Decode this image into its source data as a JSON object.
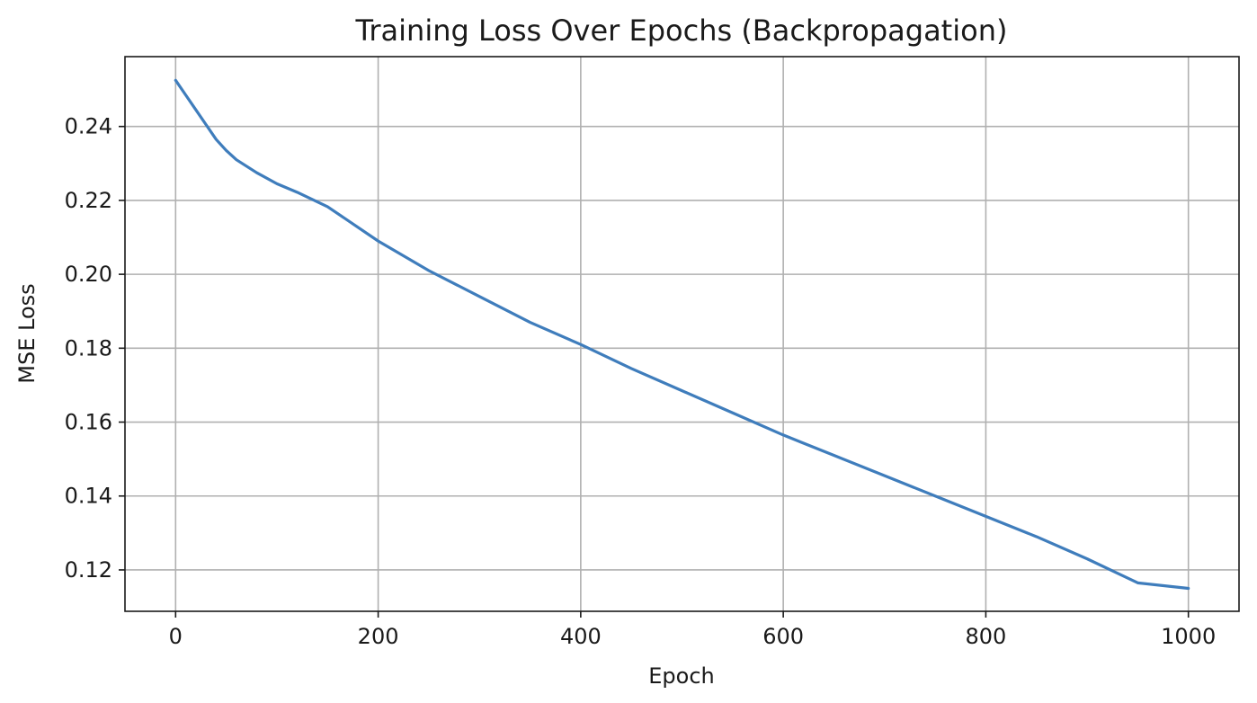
{
  "chart_data": {
    "type": "line",
    "title": "Training Loss Over Epochs (Backpropagation)",
    "xlabel": "Epoch",
    "ylabel": "MSE Loss",
    "xlim": [
      -50,
      1050
    ],
    "ylim": [
      0.1088,
      0.2589
    ],
    "xticks": [
      0,
      200,
      400,
      600,
      800,
      1000
    ],
    "xtick_labels": [
      "0",
      "200",
      "400",
      "600",
      "800",
      "1000"
    ],
    "yticks": [
      0.12,
      0.14,
      0.16,
      0.18,
      0.2,
      0.22,
      0.24
    ],
    "ytick_labels": [
      "0.12",
      "0.14",
      "0.16",
      "0.18",
      "0.20",
      "0.22",
      "0.24"
    ],
    "grid": true,
    "series": [
      {
        "color": "#3f7dbc",
        "x": [
          0,
          10,
          20,
          30,
          40,
          50,
          60,
          80,
          100,
          120,
          150,
          200,
          250,
          300,
          350,
          400,
          450,
          500,
          550,
          600,
          650,
          700,
          750,
          800,
          850,
          900,
          950,
          1000
        ],
        "y": [
          0.2525,
          0.2485,
          0.2445,
          0.2405,
          0.2365,
          0.2335,
          0.231,
          0.2275,
          0.2245,
          0.2222,
          0.2183,
          0.209,
          0.201,
          0.194,
          0.187,
          0.181,
          0.1745,
          0.1685,
          0.1625,
          0.1565,
          0.151,
          0.1455,
          0.14,
          0.1345,
          0.129,
          0.123,
          0.1165,
          0.115
        ]
      }
    ]
  }
}
